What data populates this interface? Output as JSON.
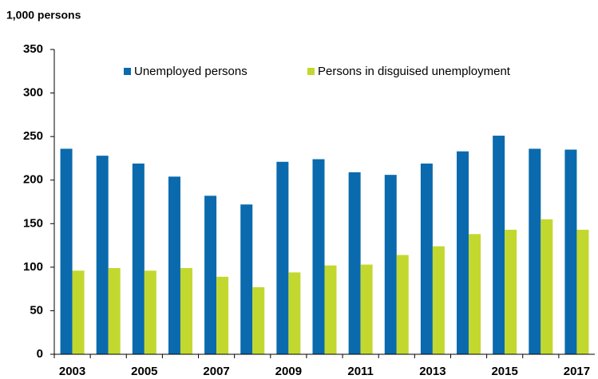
{
  "chart_data": {
    "type": "bar",
    "y_axis_label": "1,000 persons",
    "categories": [
      "2003",
      null,
      "2005",
      null,
      "2007",
      null,
      "2009",
      null,
      "2011",
      null,
      "2013",
      null,
      "2015",
      null,
      "2017"
    ],
    "series": [
      {
        "name": "Unemployed persons",
        "color": "#0a6aad",
        "values": [
          236,
          228,
          219,
          204,
          182,
          172,
          221,
          224,
          209,
          206,
          219,
          233,
          251,
          236,
          235
        ]
      },
      {
        "name": "Persons in disguised unemployment",
        "color": "#c3d82e",
        "values": [
          96,
          99,
          96,
          99,
          89,
          77,
          94,
          102,
          103,
          114,
          124,
          138,
          143,
          155,
          143
        ]
      }
    ],
    "ylim": [
      0,
      350
    ],
    "yticks": [
      0,
      50,
      100,
      150,
      200,
      250,
      300,
      350
    ],
    "grid": false,
    "legend": "top"
  }
}
